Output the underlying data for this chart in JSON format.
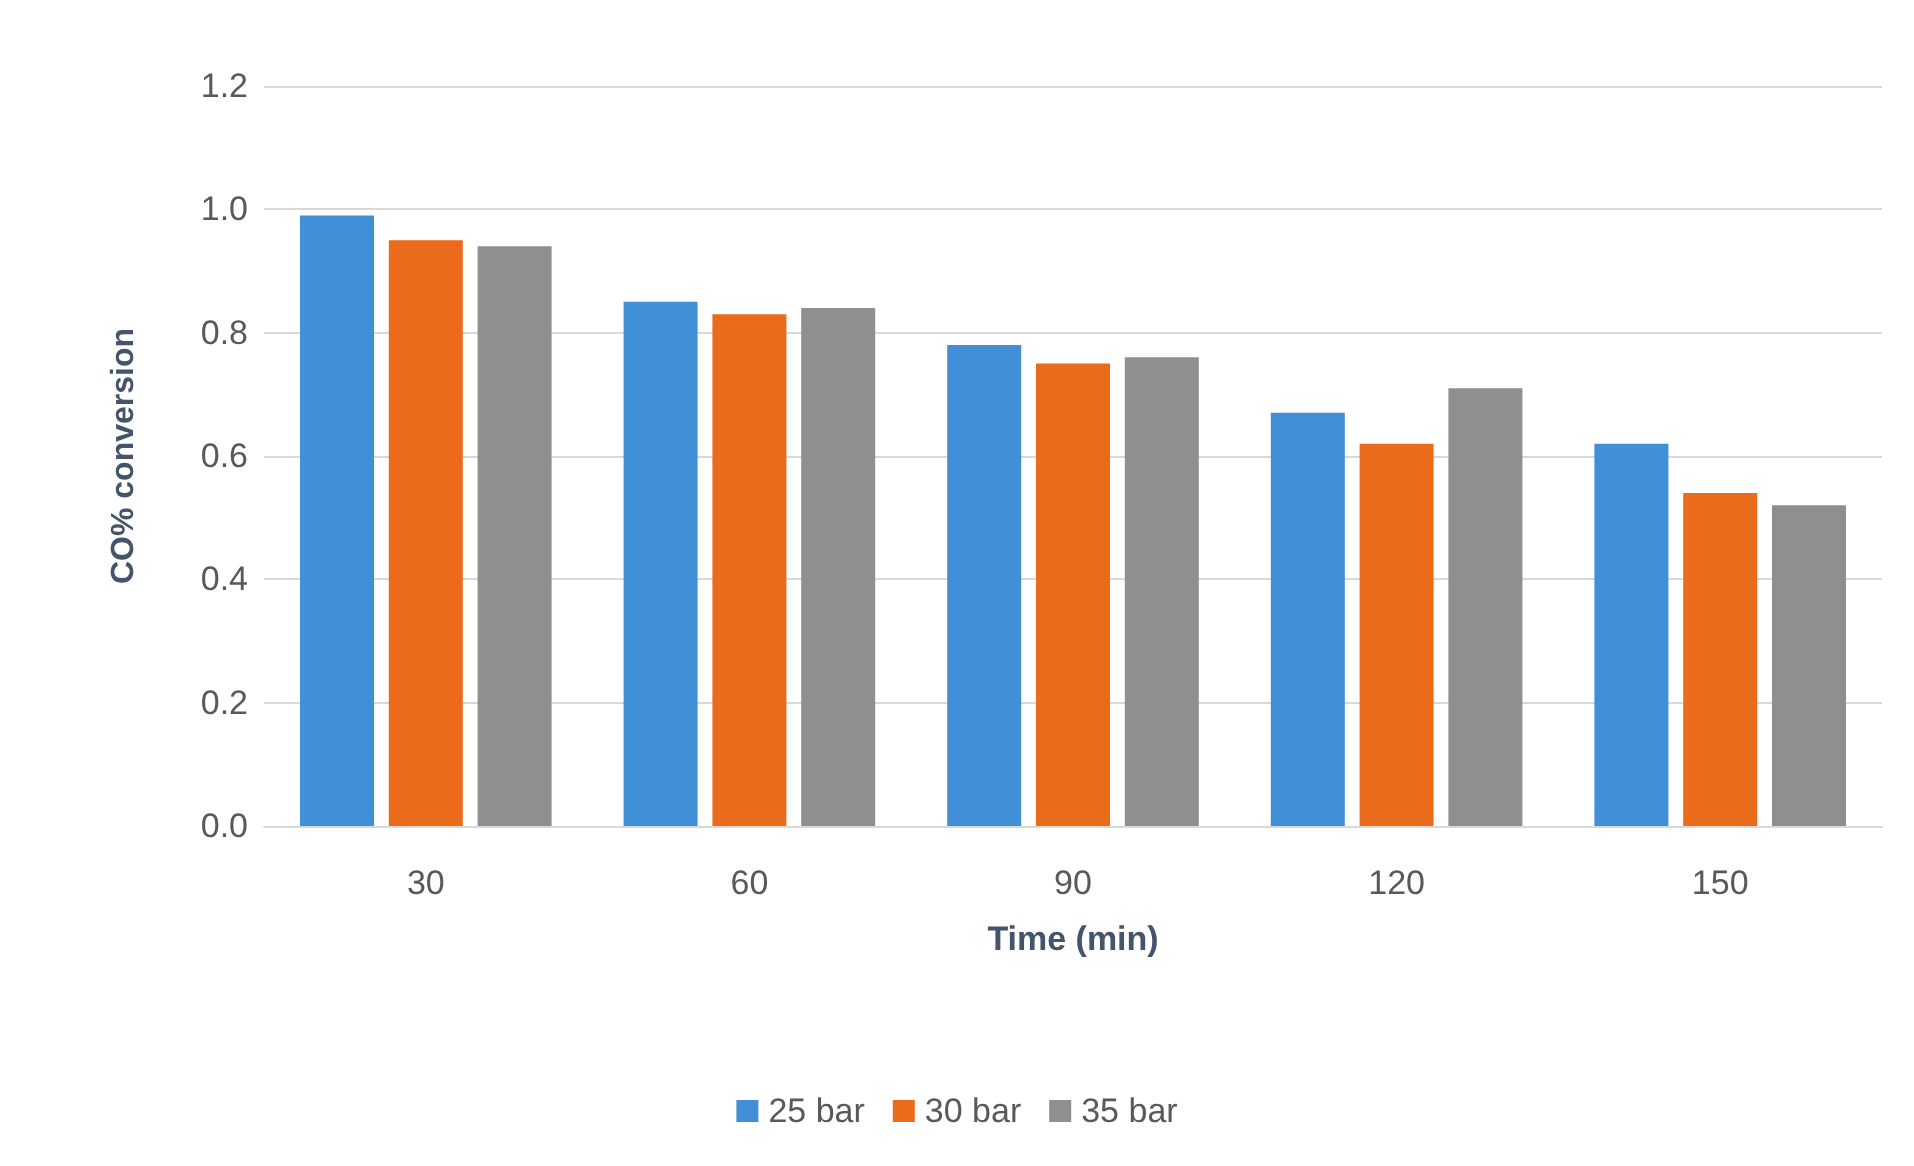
{
  "chart_data": {
    "type": "bar",
    "xlabel": "Time (min)",
    "ylabel": "CO% conversion",
    "categories": [
      "30",
      "60",
      "90",
      "120",
      "150"
    ],
    "series": [
      {
        "name": "25 bar",
        "color": "#418fd6",
        "values": [
          0.99,
          0.85,
          0.78,
          0.67,
          0.62
        ]
      },
      {
        "name": "30 bar",
        "color": "#eb6b1c",
        "values": [
          0.95,
          0.83,
          0.75,
          0.62,
          0.54
        ]
      },
      {
        "name": "35 bar",
        "color": "#8f8f8f",
        "values": [
          0.94,
          0.84,
          0.76,
          0.71,
          0.52
        ]
      }
    ],
    "ylim": [
      0,
      1.2
    ],
    "yticks": [
      {
        "value": 0,
        "label": "0.0"
      },
      0.2,
      0.4,
      0.6,
      0.8,
      {
        "value": 1,
        "label": "1.0"
      },
      1.2
    ],
    "grid": "y",
    "legend": "bottom"
  }
}
